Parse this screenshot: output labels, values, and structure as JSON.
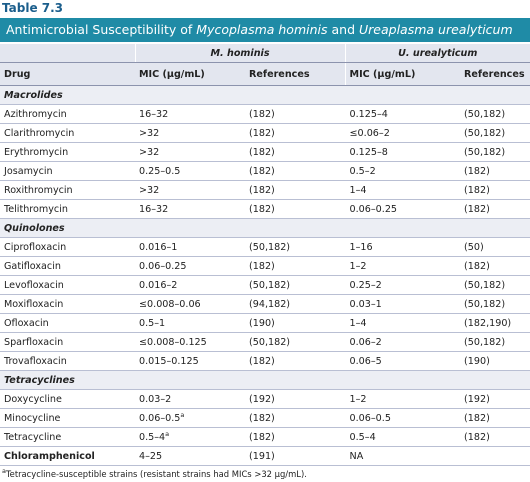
{
  "header": {
    "label": "Table 7.3",
    "title": [
      {
        "text": "Antimicrobial Susceptibility of "
      },
      {
        "text": "Mycoplasma hominis",
        "italic": true
      },
      {
        "text": " and "
      },
      {
        "text": "Ureaplasma urealyticum",
        "italic": true
      }
    ]
  },
  "table": {
    "groups": [
      "M. hominis",
      "U. urealyticum"
    ],
    "columns": [
      "Drug",
      "MIC (μg/mL)",
      "References",
      "MIC (μg/mL)",
      "References"
    ],
    "sections": [
      {
        "name": "Macrolides",
        "rows": [
          [
            "Azithromycin",
            "16–32",
            "(182)",
            "0.125–4",
            "(50,182)"
          ],
          [
            "Clarithromycin",
            ">32",
            "(182)",
            "≤0.06–2",
            "(50,182)"
          ],
          [
            "Erythromycin",
            ">32",
            "(182)",
            "0.125–8",
            "(50,182)"
          ],
          [
            "Josamycin",
            "0.25–0.5",
            "(182)",
            "0.5–2",
            "(182)"
          ],
          [
            "Roxithromycin",
            ">32",
            "(182)",
            "1–4",
            "(182)"
          ],
          [
            "Telithromycin",
            "16–32",
            "(182)",
            "0.06–0.25",
            "(182)"
          ]
        ]
      },
      {
        "name": "Quinolones",
        "rows": [
          [
            "Ciprofloxacin",
            "0.016–1",
            "(50,182)",
            "1–16",
            "(50)"
          ],
          [
            "Gatifloxacin",
            "0.06–0.25",
            "(182)",
            "1–2",
            "(182)"
          ],
          [
            "Levofloxacin",
            "0.016–2",
            "(50,182)",
            "0.25–2",
            "(50,182)"
          ],
          [
            "Moxifloxacin",
            "≤0.008–0.06",
            "(94,182)",
            "0.03–1",
            "(50,182)"
          ],
          [
            "Ofloxacin",
            "0.5–1",
            "(190)",
            "1–4",
            "(182,190)"
          ],
          [
            "Sparfloxacin",
            "≤0.008–0.125",
            "(50,182)",
            "0.06–2",
            "(50,182)"
          ],
          [
            "Trovafloxacin",
            "0.015–0.125",
            "(182)",
            "0.06–5",
            "(190)"
          ]
        ]
      },
      {
        "name": "Tetracyclines",
        "rows": [
          [
            "Doxycycline",
            "0.03–2",
            "(192)",
            "1–2",
            "(192)"
          ],
          [
            "Minocycline",
            {
              "text": "0.06–0.5",
              "sup": "a"
            },
            "(182)",
            "0.06–0.5",
            "(182)"
          ],
          [
            "Tetracycline",
            {
              "text": "0.5–4",
              "sup": "a"
            },
            "(182)",
            "0.5–4",
            "(182)"
          ]
        ]
      }
    ],
    "standalone": [
      [
        "Chloramphenicol",
        "4–25",
        "(191)",
        "NA"
      ]
    ]
  },
  "footnote": {
    "marker": "a",
    "text": "Tetracycline-susceptible strains (resistant strains had MICs >32 μg/mL)."
  }
}
